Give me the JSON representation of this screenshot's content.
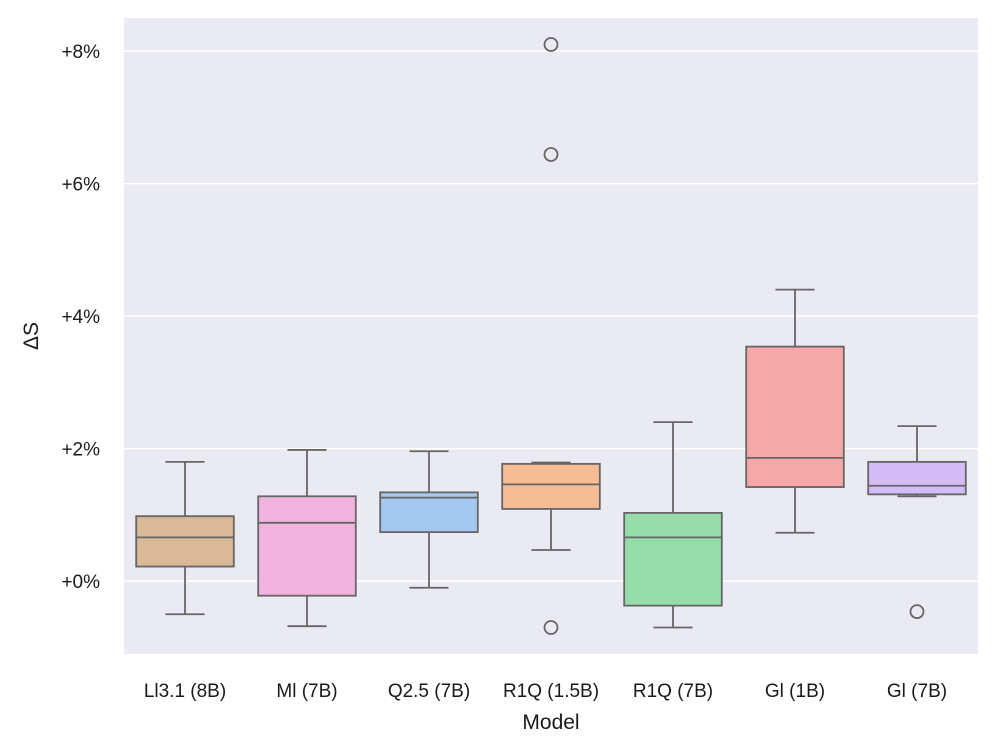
{
  "chart_data": {
    "type": "box",
    "xlabel": "Model",
    "ylabel": "ΔS",
    "ylim": [
      -1.1,
      8.5
    ],
    "y_ticks": [
      0,
      2,
      4,
      6,
      8
    ],
    "y_tick_labels": [
      "+0%",
      "+2%",
      "+4%",
      "+6%",
      "+8%"
    ],
    "grid": true,
    "background": "#eaeaf2",
    "line_color": "#666666",
    "categories": [
      "Ll3.1 (8B)",
      "Ml (7B)",
      "Q2.5 (7B)",
      "R1Q (1.5B)",
      "R1Q (7B)",
      "Gl (1B)",
      "Gl (7B)"
    ],
    "boxes": [
      {
        "name": "Ll3.1 (8B)",
        "color": "#d9b998",
        "whisker_low": -0.5,
        "q1": 0.22,
        "median": 0.66,
        "q3": 0.98,
        "whisker_high": 1.8,
        "outliers": []
      },
      {
        "name": "Ml (7B)",
        "color": "#f0b4df",
        "whisker_low": -0.68,
        "q1": -0.22,
        "median": 0.88,
        "q3": 1.28,
        "whisker_high": 1.98,
        "outliers": []
      },
      {
        "name": "Q2.5 (7B)",
        "color": "#a4c8f0",
        "whisker_low": -0.1,
        "q1": 0.74,
        "median": 1.26,
        "q3": 1.34,
        "whisker_high": 1.96,
        "outliers": []
      },
      {
        "name": "R1Q (1.5B)",
        "color": "#f6bc94",
        "whisker_low": 0.47,
        "q1": 1.09,
        "median": 1.46,
        "q3": 1.77,
        "whisker_high": 1.79,
        "outliers": [
          8.1,
          6.44,
          -0.7
        ]
      },
      {
        "name": "R1Q (7B)",
        "color": "#94ddaa",
        "whisker_low": -0.7,
        "q1": -0.37,
        "median": 0.66,
        "q3": 1.03,
        "whisker_high": 2.4,
        "outliers": []
      },
      {
        "name": "Gl (1B)",
        "color": "#f4a8a8",
        "whisker_low": 0.73,
        "q1": 1.42,
        "median": 1.86,
        "q3": 3.54,
        "whisker_high": 4.4,
        "outliers": []
      },
      {
        "name": "Gl (7B)",
        "color": "#d4bcf8",
        "whisker_low": 1.28,
        "q1": 1.31,
        "median": 1.44,
        "q3": 1.8,
        "whisker_high": 2.34,
        "outliers": [
          -0.46
        ]
      }
    ]
  }
}
